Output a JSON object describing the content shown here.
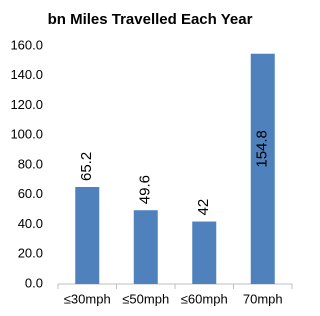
{
  "chart_data": {
    "type": "bar",
    "title": "bn Miles Travelled Each Year",
    "categories": [
      "≤30mph",
      "≤50mph",
      "≤60mph",
      "70mph"
    ],
    "values": [
      65.2,
      49.6,
      42,
      154.8
    ],
    "color": "#4f81bd",
    "ylim": [
      0,
      160
    ],
    "yticks": [
      {
        "value": 0,
        "label": "0.0"
      },
      {
        "value": 20,
        "label": "20.0"
      },
      {
        "value": 40,
        "label": "40.0"
      },
      {
        "value": 60,
        "label": "60.0"
      },
      {
        "value": 80,
        "label": "80.0"
      },
      {
        "value": 100,
        "label": "100.0"
      },
      {
        "value": 120,
        "label": "120.0"
      },
      {
        "value": 140,
        "label": "140.0"
      },
      {
        "value": 160,
        "label": "160.0"
      }
    ],
    "grid": false
  }
}
